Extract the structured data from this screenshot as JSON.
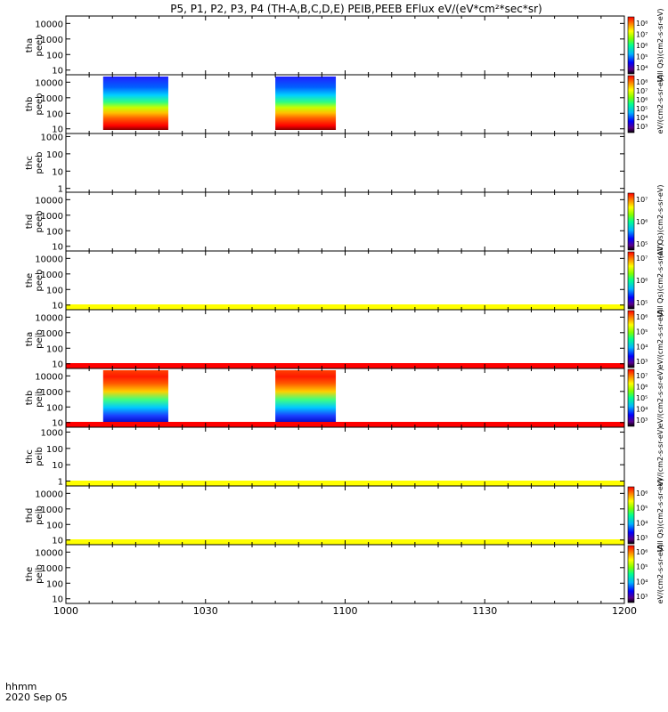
{
  "figure": {
    "title": "P5, P1, P2, P3, P4 (TH-A,B,C,D,E) PEIB,PEEB EFlux eV/(eV*cm²*sec*sr)",
    "time_label": "hhmm",
    "date_label": "2020 Sep 05"
  },
  "chart_data": {
    "type": "heatmap",
    "x_range": [
      "10:00",
      "12:00"
    ],
    "x_ticks": [
      "1000",
      "1030",
      "1100",
      "1130",
      "1200"
    ],
    "panels": [
      {
        "id": "tha_peeb",
        "label": [
          "tha",
          "peeb"
        ],
        "y_ticks": [
          "10000",
          "1000",
          "100",
          "10"
        ],
        "ylim": [
          5,
          30000
        ],
        "colorbar_ticks": [
          "10⁸",
          "10⁷",
          "10⁶",
          "10⁵",
          "10⁴"
        ],
        "colorbar_title": "(All Qs)(cm2-s-sr-eV)",
        "data_segments": [],
        "fill_bars": []
      },
      {
        "id": "thb_peeb",
        "label": [
          "thb",
          "peeb"
        ],
        "y_ticks": [
          "10000",
          "1000",
          "100",
          "10"
        ],
        "ylim": [
          5,
          30000
        ],
        "colorbar_ticks": [
          "10⁸",
          "10⁷",
          "10⁶",
          "10⁵",
          "10⁴",
          "10³"
        ],
        "colorbar_title": "eV/(cm2-s-sr-eV)",
        "data_segments": [
          {
            "start": "10:08",
            "end": "10:22",
            "dominant": "low-energy"
          },
          {
            "start": "10:45",
            "end": "10:58",
            "dominant": "low-energy"
          }
        ],
        "fill_bars": []
      },
      {
        "id": "thc_peeb",
        "label": [
          "thc",
          "peeb"
        ],
        "y_ticks": [
          "1000",
          "100",
          "10",
          "1"
        ],
        "ylim": [
          0.6,
          1500
        ],
        "colorbar_ticks": [],
        "colorbar_title": "",
        "data_segments": [],
        "fill_bars": []
      },
      {
        "id": "thd_peeb",
        "label": [
          "thd",
          "peeb"
        ],
        "y_ticks": [
          "10000",
          "1000",
          "100",
          "10"
        ],
        "ylim": [
          5,
          30000
        ],
        "colorbar_ticks": [
          "10⁷",
          "10⁶",
          "10⁵"
        ],
        "colorbar_title": "(All Qs)(cm2-s-sr-eV)",
        "data_segments": [],
        "fill_bars": []
      },
      {
        "id": "the_peeb",
        "label": [
          "the",
          "peeb"
        ],
        "y_ticks": [
          "10000",
          "1000",
          "100",
          "10"
        ],
        "ylim": [
          5,
          30000
        ],
        "colorbar_ticks": [
          "10⁷",
          "10⁶",
          "10⁵"
        ],
        "colorbar_title": "(All Qs)(cm2-s-sr-eV)",
        "data_segments": [],
        "fill_bars": [
          {
            "color": "yellow",
            "position": "bottom"
          }
        ]
      },
      {
        "id": "tha_peib",
        "label": [
          "tha",
          "peib"
        ],
        "y_ticks": [
          "10000",
          "1000",
          "100",
          "10"
        ],
        "ylim": [
          5,
          30000
        ],
        "colorbar_ticks": [
          "10⁶",
          "10⁵",
          "10⁴",
          "10³"
        ],
        "colorbar_title": "eV/(cm2-s-sr-eV)",
        "data_segments": [],
        "fill_bars": [
          {
            "color": "red",
            "position": "bottom"
          }
        ]
      },
      {
        "id": "thb_peib",
        "label": [
          "thb",
          "peib"
        ],
        "y_ticks": [
          "10000",
          "1000",
          "100",
          "10"
        ],
        "ylim": [
          5,
          30000
        ],
        "colorbar_ticks": [
          "10⁷",
          "10⁶",
          "10⁵",
          "10⁴",
          "10³"
        ],
        "colorbar_title": "eV/(cm2-s-sr-eV)",
        "data_segments": [
          {
            "start": "10:08",
            "end": "10:22",
            "dominant": "high-energy"
          },
          {
            "start": "10:45",
            "end": "10:58",
            "dominant": "high-energy"
          }
        ],
        "fill_bars": [
          {
            "color": "red",
            "position": "bottom"
          }
        ]
      },
      {
        "id": "thc_peib",
        "label": [
          "thc",
          "peib"
        ],
        "y_ticks": [
          "1000",
          "100",
          "10",
          "1"
        ],
        "ylim": [
          0.5,
          2000
        ],
        "colorbar_ticks": [],
        "colorbar_title": "eV/(cm2-s-sr-eV)",
        "data_segments": [],
        "fill_bars": [
          {
            "color": "yellow",
            "position": "bottom"
          }
        ]
      },
      {
        "id": "thd_peib",
        "label": [
          "thd",
          "peib"
        ],
        "y_ticks": [
          "10000",
          "1000",
          "100",
          "10"
        ],
        "ylim": [
          5,
          30000
        ],
        "colorbar_ticks": [
          "10⁶",
          "10⁵",
          "10⁴",
          "10³"
        ],
        "colorbar_title": "(All Qs)(cm2-s-sr-eV)",
        "data_segments": [],
        "fill_bars": [
          {
            "color": "yellow",
            "position": "bottom"
          }
        ]
      },
      {
        "id": "the_peib",
        "label": [
          "the",
          "peib"
        ],
        "y_ticks": [
          "10000",
          "1000",
          "100",
          "10"
        ],
        "ylim": [
          5,
          30000
        ],
        "colorbar_ticks": [
          "10⁶",
          "10⁵",
          "10⁴",
          "10³"
        ],
        "colorbar_title": "eV/(cm2-s-sr-eV)",
        "data_segments": [],
        "fill_bars": []
      }
    ]
  }
}
